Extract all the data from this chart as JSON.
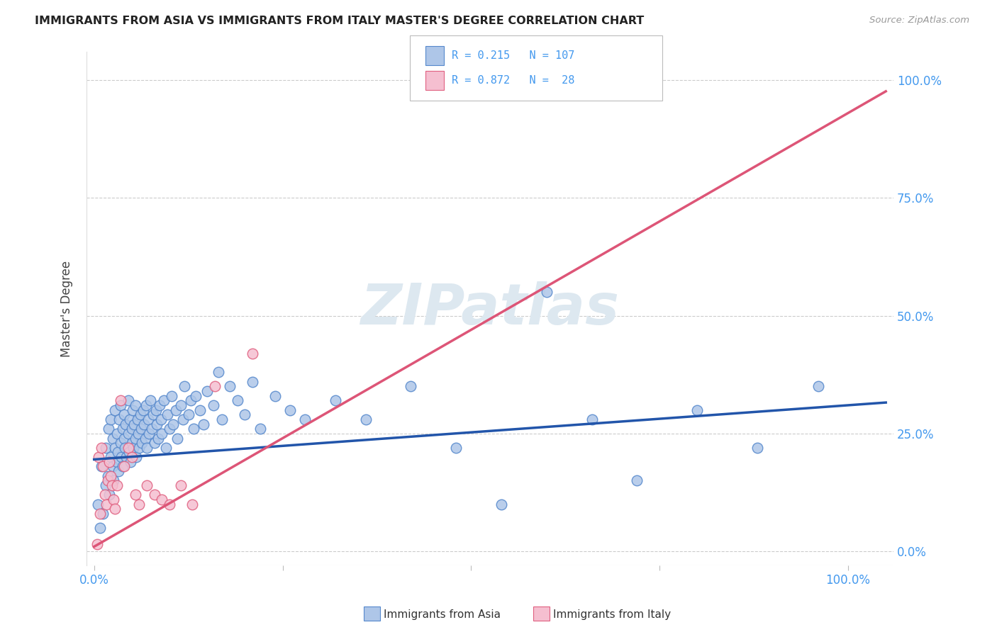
{
  "title": "IMMIGRANTS FROM ASIA VS IMMIGRANTS FROM ITALY MASTER'S DEGREE CORRELATION CHART",
  "source": "Source: ZipAtlas.com",
  "ylabel": "Master's Degree",
  "legend_blue_label": "Immigrants from Asia",
  "legend_pink_label": "Immigrants from Italy",
  "R_blue": "0.215",
  "N_blue": "107",
  "R_pink": "0.872",
  "N_pink": "28",
  "blue_fill": "#aec6e8",
  "blue_edge": "#5588cc",
  "pink_fill": "#f5bfd0",
  "pink_edge": "#e06080",
  "trendline_blue": "#2255aa",
  "trendline_pink": "#dd5577",
  "watermark_color": "#dde8f0",
  "background_color": "#ffffff",
  "grid_color": "#cccccc",
  "axis_tick_color": "#4499ee",
  "title_color": "#222222",
  "source_color": "#999999",
  "ylabel_color": "#444444",
  "blue_trend_intercept": 0.195,
  "blue_trend_slope": 0.115,
  "pink_trend_intercept": 0.01,
  "pink_trend_slope": 0.92,
  "xlim_min": -0.01,
  "xlim_max": 1.06,
  "ylim_min": -0.03,
  "ylim_max": 1.06,
  "asia_x": [
    0.005,
    0.008,
    0.01,
    0.012,
    0.015,
    0.015,
    0.018,
    0.019,
    0.02,
    0.022,
    0.022,
    0.025,
    0.025,
    0.026,
    0.028,
    0.028,
    0.03,
    0.03,
    0.031,
    0.032,
    0.033,
    0.035,
    0.035,
    0.036,
    0.038,
    0.038,
    0.04,
    0.04,
    0.041,
    0.042,
    0.043,
    0.045,
    0.045,
    0.046,
    0.047,
    0.048,
    0.05,
    0.05,
    0.051,
    0.052,
    0.053,
    0.055,
    0.055,
    0.056,
    0.058,
    0.059,
    0.06,
    0.061,
    0.062,
    0.063,
    0.065,
    0.066,
    0.068,
    0.069,
    0.07,
    0.072,
    0.073,
    0.075,
    0.076,
    0.078,
    0.08,
    0.082,
    0.083,
    0.085,
    0.087,
    0.089,
    0.09,
    0.092,
    0.095,
    0.097,
    0.1,
    0.103,
    0.105,
    0.108,
    0.11,
    0.115,
    0.118,
    0.12,
    0.125,
    0.128,
    0.132,
    0.135,
    0.14,
    0.145,
    0.15,
    0.158,
    0.165,
    0.17,
    0.18,
    0.19,
    0.2,
    0.21,
    0.22,
    0.24,
    0.26,
    0.28,
    0.32,
    0.36,
    0.42,
    0.48,
    0.54,
    0.6,
    0.66,
    0.72,
    0.8,
    0.88,
    0.96
  ],
  "asia_y": [
    0.1,
    0.05,
    0.18,
    0.08,
    0.22,
    0.14,
    0.16,
    0.26,
    0.12,
    0.2,
    0.28,
    0.18,
    0.24,
    0.15,
    0.22,
    0.3,
    0.19,
    0.25,
    0.21,
    0.17,
    0.28,
    0.23,
    0.31,
    0.2,
    0.26,
    0.18,
    0.24,
    0.29,
    0.22,
    0.27,
    0.2,
    0.25,
    0.32,
    0.21,
    0.28,
    0.19,
    0.26,
    0.23,
    0.3,
    0.22,
    0.27,
    0.24,
    0.31,
    0.2,
    0.28,
    0.25,
    0.22,
    0.29,
    0.26,
    0.23,
    0.3,
    0.27,
    0.24,
    0.31,
    0.22,
    0.28,
    0.25,
    0.32,
    0.26,
    0.29,
    0.23,
    0.3,
    0.27,
    0.24,
    0.31,
    0.28,
    0.25,
    0.32,
    0.22,
    0.29,
    0.26,
    0.33,
    0.27,
    0.3,
    0.24,
    0.31,
    0.28,
    0.35,
    0.29,
    0.32,
    0.26,
    0.33,
    0.3,
    0.27,
    0.34,
    0.31,
    0.38,
    0.28,
    0.35,
    0.32,
    0.29,
    0.36,
    0.26,
    0.33,
    0.3,
    0.28,
    0.32,
    0.28,
    0.35,
    0.22,
    0.1,
    0.55,
    0.28,
    0.15,
    0.3,
    0.22,
    0.35
  ],
  "italy_x": [
    0.004,
    0.006,
    0.008,
    0.01,
    0.012,
    0.014,
    0.016,
    0.018,
    0.02,
    0.022,
    0.024,
    0.026,
    0.028,
    0.03,
    0.035,
    0.04,
    0.045,
    0.05,
    0.055,
    0.06,
    0.07,
    0.08,
    0.09,
    0.1,
    0.115,
    0.13,
    0.16,
    0.21
  ],
  "italy_y": [
    0.015,
    0.2,
    0.08,
    0.22,
    0.18,
    0.12,
    0.1,
    0.15,
    0.19,
    0.16,
    0.14,
    0.11,
    0.09,
    0.14,
    0.32,
    0.18,
    0.22,
    0.2,
    0.12,
    0.1,
    0.14,
    0.12,
    0.11,
    0.1,
    0.14,
    0.1,
    0.35,
    0.42
  ]
}
